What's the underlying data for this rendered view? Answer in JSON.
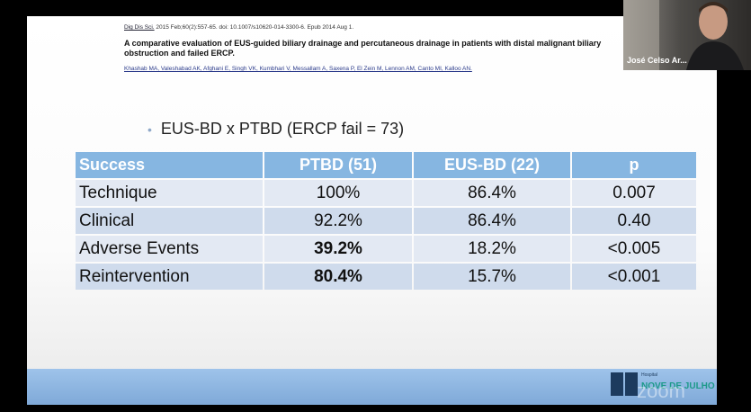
{
  "slide": {
    "citation_journal": "Dig Dis Sci.",
    "citation_rest": "2015 Feb;60(2):557-65. doi: 10.1007/s10620-014-3300-6. Epub 2014 Aug 1.",
    "title": "A comparative evaluation of EUS-guided biliary drainage and percutaneous drainage in patients with distal malignant biliary obstruction and failed ERCP.",
    "authors": "Khashab MA, Valeshabad AK, Afghani E, Singh VK, Kumbhari V, Messallam A, Saxena P, El Zein M, Lennon AM, Canto MI, Kalloo AN.",
    "bullet": "EUS-BD x PTBD (ERCP fail = 73)",
    "table": {
      "header": [
        "Success",
        "PTBD (51)",
        "EUS-BD (22)",
        "p"
      ],
      "rows": [
        [
          "Technique",
          "100%",
          "86.4%",
          "0.007"
        ],
        [
          "Clinical",
          "92.2%",
          "86.4%",
          "0.40"
        ],
        [
          "Adverse Events",
          {
            "text": "39.2%",
            "bold": true
          },
          "18.2%",
          "<0.005"
        ],
        [
          "Reintervention",
          {
            "text": "80.4%",
            "bold": true
          },
          "15.7%",
          "<0.001"
        ]
      ]
    },
    "logo_small": "Hospital",
    "logo_text": "NOVE DE JULHO",
    "watermark": "zoom"
  },
  "participant": {
    "name": "José Celso Ar..."
  }
}
